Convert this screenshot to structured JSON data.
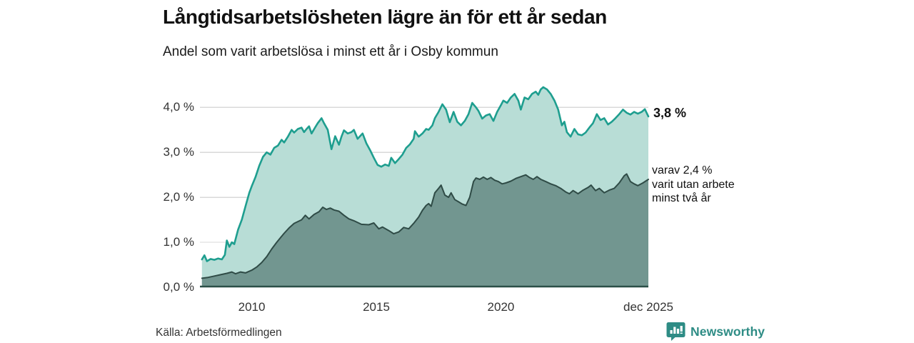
{
  "header": {
    "title": "Långtidsarbetslösheten lägre än för ett år sedan",
    "subtitle": "Andel som varit arbetslösa i minst ett år i Osby kommun"
  },
  "annotations": {
    "latest_value": "3,8 %",
    "two_year_note_lines": [
      "varav 2,4 %",
      "varit utan arbete",
      "minst två år"
    ]
  },
  "footer": {
    "source": "Källa: Arbetsförmedlingen",
    "brand": "Newsworthy"
  },
  "colors": {
    "series_one_year_line": "#1e9e8f",
    "series_one_year_fill": "#b8ddd6",
    "series_two_year_line": "#2f4b46",
    "series_two_year_fill": "#729690",
    "gridline": "#d9d9d9",
    "axis_line": "#2b4f48",
    "text": "#111111",
    "tick_text": "#333333",
    "brand_teal": "#2e8c85"
  },
  "chart_data": {
    "type": "area",
    "title": "Långtidsarbetslösheten lägre än för ett år sedan",
    "subtitle": "Andel som varit arbetslösa i minst ett år i Osby kommun",
    "xlabel": "",
    "ylabel": "",
    "x_domain": [
      2007.92,
      2025.92
    ],
    "y_domain": [
      0,
      4.64
    ],
    "grid": "horizontal",
    "legend": "none-direct-labels",
    "x_ticks": [
      {
        "value": 2010,
        "label": "2010"
      },
      {
        "value": 2015,
        "label": "2015"
      },
      {
        "value": 2020,
        "label": "2020"
      },
      {
        "value": 2025.92,
        "label": "dec 2025"
      }
    ],
    "y_ticks": [
      {
        "value": 4,
        "label": "4,0 %"
      },
      {
        "value": 3,
        "label": "3,0 %"
      },
      {
        "value": 2,
        "label": "2,0 %"
      },
      {
        "value": 1,
        "label": "1,0 %"
      },
      {
        "value": 0,
        "label": "0,0 %"
      }
    ],
    "series": [
      {
        "name": "Andel arbetslösa minst ett år",
        "end_label": "3,8 %",
        "end_value": 3.8,
        "line_color": "#1e9e8f",
        "fill_color": "#b8ddd6",
        "line_width": 2.6,
        "points": [
          [
            2008.0,
            0.62
          ],
          [
            2008.1,
            0.71
          ],
          [
            2008.2,
            0.58
          ],
          [
            2008.35,
            0.63
          ],
          [
            2008.5,
            0.61
          ],
          [
            2008.65,
            0.64
          ],
          [
            2008.8,
            0.62
          ],
          [
            2008.92,
            0.72
          ],
          [
            2009.0,
            1.04
          ],
          [
            2009.1,
            0.9
          ],
          [
            2009.2,
            1.0
          ],
          [
            2009.3,
            0.96
          ],
          [
            2009.45,
            1.28
          ],
          [
            2009.6,
            1.5
          ],
          [
            2009.75,
            1.8
          ],
          [
            2009.9,
            2.1
          ],
          [
            2010.0,
            2.25
          ],
          [
            2010.15,
            2.45
          ],
          [
            2010.3,
            2.7
          ],
          [
            2010.45,
            2.9
          ],
          [
            2010.6,
            3.0
          ],
          [
            2010.75,
            2.95
          ],
          [
            2010.9,
            3.1
          ],
          [
            2011.05,
            3.15
          ],
          [
            2011.2,
            3.28
          ],
          [
            2011.3,
            3.22
          ],
          [
            2011.45,
            3.35
          ],
          [
            2011.6,
            3.5
          ],
          [
            2011.7,
            3.44
          ],
          [
            2011.85,
            3.52
          ],
          [
            2012.0,
            3.55
          ],
          [
            2012.1,
            3.45
          ],
          [
            2012.2,
            3.52
          ],
          [
            2012.3,
            3.58
          ],
          [
            2012.4,
            3.42
          ],
          [
            2012.55,
            3.56
          ],
          [
            2012.65,
            3.65
          ],
          [
            2012.8,
            3.76
          ],
          [
            2012.9,
            3.65
          ],
          [
            2013.05,
            3.5
          ],
          [
            2013.2,
            3.07
          ],
          [
            2013.35,
            3.36
          ],
          [
            2013.5,
            3.17
          ],
          [
            2013.6,
            3.35
          ],
          [
            2013.7,
            3.49
          ],
          [
            2013.85,
            3.42
          ],
          [
            2014.0,
            3.45
          ],
          [
            2014.1,
            3.5
          ],
          [
            2014.25,
            3.3
          ],
          [
            2014.45,
            3.42
          ],
          [
            2014.6,
            3.2
          ],
          [
            2014.75,
            3.05
          ],
          [
            2014.9,
            2.88
          ],
          [
            2015.05,
            2.72
          ],
          [
            2015.2,
            2.68
          ],
          [
            2015.35,
            2.73
          ],
          [
            2015.5,
            2.7
          ],
          [
            2015.6,
            2.88
          ],
          [
            2015.75,
            2.76
          ],
          [
            2015.9,
            2.85
          ],
          [
            2016.05,
            2.95
          ],
          [
            2016.2,
            3.1
          ],
          [
            2016.35,
            3.18
          ],
          [
            2016.5,
            3.3
          ],
          [
            2016.55,
            3.47
          ],
          [
            2016.7,
            3.35
          ],
          [
            2016.85,
            3.42
          ],
          [
            2017.0,
            3.52
          ],
          [
            2017.1,
            3.5
          ],
          [
            2017.25,
            3.6
          ],
          [
            2017.35,
            3.76
          ],
          [
            2017.5,
            3.9
          ],
          [
            2017.65,
            4.07
          ],
          [
            2017.8,
            3.95
          ],
          [
            2017.95,
            3.67
          ],
          [
            2018.1,
            3.9
          ],
          [
            2018.25,
            3.68
          ],
          [
            2018.4,
            3.6
          ],
          [
            2018.55,
            3.7
          ],
          [
            2018.7,
            3.85
          ],
          [
            2018.85,
            4.1
          ],
          [
            2019.0,
            4.0
          ],
          [
            2019.1,
            3.92
          ],
          [
            2019.25,
            3.75
          ],
          [
            2019.4,
            3.82
          ],
          [
            2019.55,
            3.85
          ],
          [
            2019.7,
            3.7
          ],
          [
            2019.85,
            3.9
          ],
          [
            2020.0,
            4.05
          ],
          [
            2020.1,
            4.15
          ],
          [
            2020.25,
            4.1
          ],
          [
            2020.4,
            4.22
          ],
          [
            2020.55,
            4.3
          ],
          [
            2020.7,
            4.15
          ],
          [
            2020.8,
            3.95
          ],
          [
            2020.95,
            4.22
          ],
          [
            2021.1,
            4.18
          ],
          [
            2021.25,
            4.3
          ],
          [
            2021.4,
            4.35
          ],
          [
            2021.5,
            4.28
          ],
          [
            2021.6,
            4.4
          ],
          [
            2021.7,
            4.45
          ],
          [
            2021.85,
            4.4
          ],
          [
            2022.0,
            4.3
          ],
          [
            2022.15,
            4.15
          ],
          [
            2022.3,
            3.95
          ],
          [
            2022.45,
            3.6
          ],
          [
            2022.55,
            3.68
          ],
          [
            2022.65,
            3.45
          ],
          [
            2022.8,
            3.35
          ],
          [
            2022.95,
            3.52
          ],
          [
            2023.1,
            3.4
          ],
          [
            2023.25,
            3.38
          ],
          [
            2023.4,
            3.44
          ],
          [
            2023.55,
            3.55
          ],
          [
            2023.7,
            3.65
          ],
          [
            2023.85,
            3.85
          ],
          [
            2024.0,
            3.72
          ],
          [
            2024.15,
            3.76
          ],
          [
            2024.3,
            3.62
          ],
          [
            2024.45,
            3.68
          ],
          [
            2024.6,
            3.76
          ],
          [
            2024.75,
            3.85
          ],
          [
            2024.9,
            3.95
          ],
          [
            2025.05,
            3.88
          ],
          [
            2025.2,
            3.84
          ],
          [
            2025.35,
            3.9
          ],
          [
            2025.5,
            3.86
          ],
          [
            2025.65,
            3.9
          ],
          [
            2025.78,
            3.96
          ],
          [
            2025.92,
            3.8
          ]
        ]
      },
      {
        "name": "varav utan arbete minst två år",
        "end_label": "varav 2,4 %",
        "end_value": 2.4,
        "line_color": "#2f4b46",
        "fill_color": "#729690",
        "line_width": 2,
        "points": [
          [
            2008.0,
            0.2
          ],
          [
            2008.25,
            0.22
          ],
          [
            2008.5,
            0.25
          ],
          [
            2008.75,
            0.28
          ],
          [
            2009.0,
            0.31
          ],
          [
            2009.2,
            0.34
          ],
          [
            2009.35,
            0.3
          ],
          [
            2009.55,
            0.34
          ],
          [
            2009.75,
            0.32
          ],
          [
            2010.0,
            0.38
          ],
          [
            2010.2,
            0.45
          ],
          [
            2010.4,
            0.55
          ],
          [
            2010.6,
            0.68
          ],
          [
            2010.8,
            0.85
          ],
          [
            2011.0,
            1.0
          ],
          [
            2011.15,
            1.1
          ],
          [
            2011.3,
            1.2
          ],
          [
            2011.5,
            1.32
          ],
          [
            2011.7,
            1.42
          ],
          [
            2011.85,
            1.46
          ],
          [
            2012.0,
            1.5
          ],
          [
            2012.15,
            1.6
          ],
          [
            2012.3,
            1.52
          ],
          [
            2012.5,
            1.62
          ],
          [
            2012.7,
            1.68
          ],
          [
            2012.85,
            1.78
          ],
          [
            2013.0,
            1.73
          ],
          [
            2013.15,
            1.76
          ],
          [
            2013.3,
            1.72
          ],
          [
            2013.5,
            1.69
          ],
          [
            2013.7,
            1.6
          ],
          [
            2013.9,
            1.52
          ],
          [
            2014.1,
            1.48
          ],
          [
            2014.4,
            1.4
          ],
          [
            2014.7,
            1.39
          ],
          [
            2014.9,
            1.43
          ],
          [
            2015.1,
            1.3
          ],
          [
            2015.25,
            1.34
          ],
          [
            2015.5,
            1.26
          ],
          [
            2015.7,
            1.19
          ],
          [
            2015.9,
            1.23
          ],
          [
            2016.1,
            1.33
          ],
          [
            2016.3,
            1.3
          ],
          [
            2016.5,
            1.42
          ],
          [
            2016.7,
            1.56
          ],
          [
            2016.85,
            1.71
          ],
          [
            2017.0,
            1.82
          ],
          [
            2017.1,
            1.86
          ],
          [
            2017.2,
            1.8
          ],
          [
            2017.35,
            2.1
          ],
          [
            2017.5,
            2.2
          ],
          [
            2017.6,
            2.27
          ],
          [
            2017.75,
            2.05
          ],
          [
            2017.9,
            2.0
          ],
          [
            2018.0,
            2.1
          ],
          [
            2018.15,
            1.95
          ],
          [
            2018.3,
            1.9
          ],
          [
            2018.45,
            1.85
          ],
          [
            2018.6,
            1.82
          ],
          [
            2018.75,
            2.0
          ],
          [
            2018.9,
            2.35
          ],
          [
            2019.0,
            2.43
          ],
          [
            2019.15,
            2.4
          ],
          [
            2019.3,
            2.45
          ],
          [
            2019.45,
            2.4
          ],
          [
            2019.6,
            2.44
          ],
          [
            2019.75,
            2.38
          ],
          [
            2019.9,
            2.35
          ],
          [
            2020.05,
            2.3
          ],
          [
            2020.2,
            2.32
          ],
          [
            2020.4,
            2.36
          ],
          [
            2020.6,
            2.42
          ],
          [
            2020.8,
            2.46
          ],
          [
            2021.0,
            2.5
          ],
          [
            2021.15,
            2.44
          ],
          [
            2021.3,
            2.4
          ],
          [
            2021.45,
            2.46
          ],
          [
            2021.6,
            2.4
          ],
          [
            2021.8,
            2.35
          ],
          [
            2022.0,
            2.3
          ],
          [
            2022.2,
            2.26
          ],
          [
            2022.4,
            2.2
          ],
          [
            2022.6,
            2.12
          ],
          [
            2022.75,
            2.08
          ],
          [
            2022.9,
            2.15
          ],
          [
            2023.1,
            2.08
          ],
          [
            2023.3,
            2.16
          ],
          [
            2023.5,
            2.22
          ],
          [
            2023.62,
            2.27
          ],
          [
            2023.8,
            2.15
          ],
          [
            2023.95,
            2.2
          ],
          [
            2024.15,
            2.1
          ],
          [
            2024.35,
            2.16
          ],
          [
            2024.55,
            2.2
          ],
          [
            2024.75,
            2.32
          ],
          [
            2024.95,
            2.48
          ],
          [
            2025.05,
            2.52
          ],
          [
            2025.2,
            2.35
          ],
          [
            2025.35,
            2.3
          ],
          [
            2025.5,
            2.26
          ],
          [
            2025.7,
            2.32
          ],
          [
            2025.92,
            2.4
          ]
        ]
      }
    ]
  }
}
